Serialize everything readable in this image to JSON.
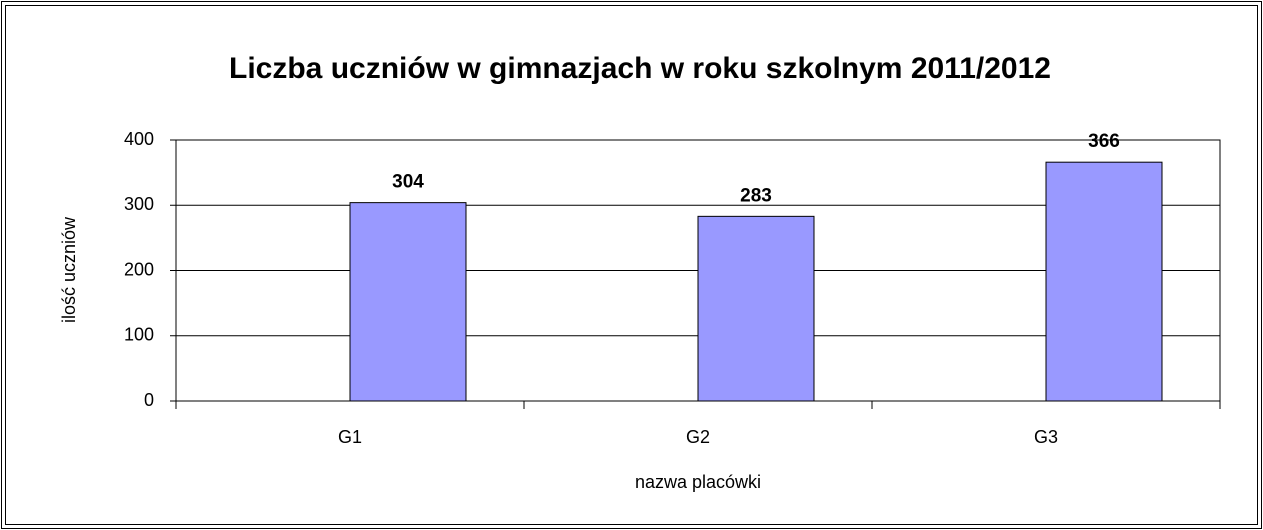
{
  "chart_data": {
    "type": "bar",
    "title": "Liczba uczniów w gimnazjach w roku szkolnym 2011/2012",
    "categories": [
      "G1",
      "G2",
      "G3"
    ],
    "values": [
      304,
      283,
      366
    ],
    "color": "#9999ff",
    "ylim": [
      0,
      400
    ],
    "yticks": [
      0,
      100,
      200,
      300,
      400
    ],
    "grid": true,
    "ylabel": "ilość uczniów",
    "xlabel": "nazwa placówki"
  }
}
